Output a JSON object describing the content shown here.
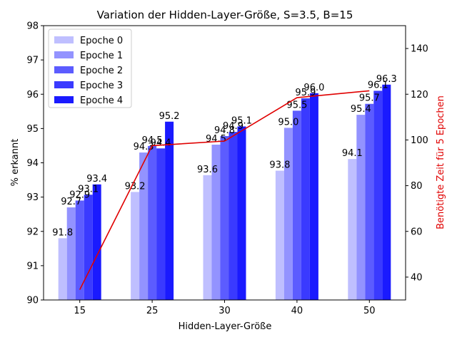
{
  "chart_data": {
    "type": "bar",
    "title": "Variation der Hidden-Layer-Größe, S=3.5, B=15",
    "xlabel": "Hidden-Layer-Größe",
    "ylabel": "% erkannt",
    "y2label": "Benötigte Zeit für 5 Epochen",
    "categories": [
      "15",
      "25",
      "30",
      "40",
      "50"
    ],
    "ylim": [
      90,
      98
    ],
    "yticks": [
      "90",
      "91",
      "92",
      "93",
      "94",
      "95",
      "96",
      "97",
      "98"
    ],
    "y2lim": [
      30,
      150
    ],
    "y2ticks": [
      "40",
      "60",
      "80",
      "100",
      "120",
      "140"
    ],
    "legend_position": "top-left",
    "series": [
      {
        "name": "Epoche 0",
        "color": "#bfbfff",
        "values": [
          91.8,
          93.15,
          93.64,
          93.77,
          94.11
        ],
        "labels": [
          "91.8",
          "93.2",
          "93.6",
          "93.8",
          "94.1"
        ]
      },
      {
        "name": "Epoche 1",
        "color": "#9393ff",
        "values": [
          92.7,
          94.3,
          94.53,
          95.02,
          95.4
        ],
        "labels": [
          "92.7",
          "94.3",
          "94.5",
          "95.0",
          "95.4"
        ]
      },
      {
        "name": "Epoche 2",
        "color": "#5c5cff",
        "values": [
          92.9,
          94.49,
          94.78,
          95.52,
          95.72
        ],
        "labels": [
          "92.9",
          "94.5",
          "94.8",
          "95.5",
          "95.7"
        ]
      },
      {
        "name": "Epoche 3",
        "color": "#3a3aff",
        "values": [
          93.07,
          94.42,
          94.9,
          95.88,
          96.1
        ],
        "labels": [
          "93.1",
          "94.4",
          "94.9",
          "95.9",
          "96.1"
        ]
      },
      {
        "name": "Epoche 4",
        "color": "#1a1aff",
        "values": [
          93.37,
          95.2,
          95.06,
          96.03,
          96.28
        ],
        "labels": [
          "93.4",
          "95.2",
          "95.1",
          "96.0",
          "96.3"
        ]
      }
    ],
    "time_line": {
      "color": "#e00000",
      "values": [
        34.5,
        97.5,
        99.5,
        118.5,
        121.5
      ]
    }
  }
}
